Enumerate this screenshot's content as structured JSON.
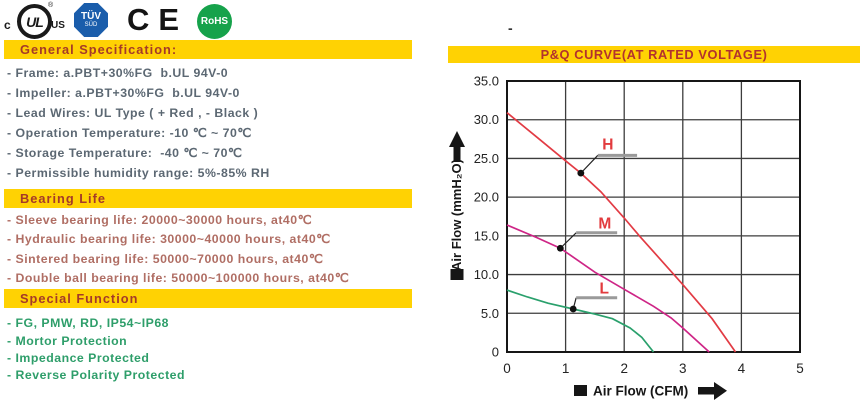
{
  "certifications": {
    "ul": {
      "prefix": "c",
      "letters": "UL",
      "suffix": "US",
      "registered": "®"
    },
    "tuv": {
      "top": "TÜV",
      "bottom": "SÜD"
    },
    "ce": "CE",
    "rohs": "RoHS"
  },
  "page_dash": "-",
  "sections": [
    {
      "title": "General Specification:",
      "items": [
        "- Frame: a.PBT+30%FG  b.UL 94V-0",
        "- Impeller: a.PBT+30%FG  b.UL 94V-0",
        "- Lead Wires: UL Type ( + Red , - Black )",
        "- Operation Temperature: -10 ℃ ~ 70℃",
        "- Storage Temperature:  -40 ℃ ~ 70℃",
        "- Permissible humidity range: 5%-85% RH"
      ]
    },
    {
      "title": "Bearing Life",
      "items": [
        "- Sleeve bearing life: 20000~30000 hours, at40℃",
        "- Hydraulic bearing life: 30000~40000 hours, at40℃",
        "- Sintered bearing life: 50000~70000 hours, at40℃",
        "- Double ball bearing life: 50000~100000 hours, at40℃"
      ]
    },
    {
      "title": "Special Function",
      "items": [
        "- FG, PMW, RD, IP54~IP68",
        "- Mortor Protection",
        "- Impedance Protected",
        "- Reverse Polarity Protected"
      ]
    }
  ],
  "colors": {
    "section_bar": "#FFD203",
    "section_title_text": "#A53A28",
    "general_text": "#5C6873",
    "bearing_text": "#B06E64",
    "special_text": "#2E9E6A",
    "chart_title_text": "#B2322E",
    "curve_label": "#E23B3E"
  },
  "chart_data": {
    "type": "line",
    "title": "P&Q CURVE(AT RATED VOLTAGE)",
    "xlabel": "Air Flow (CFM)",
    "ylabel": "Air Flow (mmH₂O)",
    "xlim": [
      0,
      5
    ],
    "ylim": [
      0,
      35
    ],
    "x_ticks": [
      "0",
      "1",
      "2",
      "3",
      "4",
      "5"
    ],
    "y_ticks": [
      "35.0",
      "30.0",
      "25.0",
      "20.0",
      "15.0",
      "10.0",
      "5.0",
      "0"
    ],
    "grid": true,
    "legend_position": "inline-callouts",
    "series_label_color": "#E23B3E",
    "series": [
      {
        "name": "H",
        "color": "#E23B44",
        "points": [
          [
            0,
            30.9
          ],
          [
            0.5,
            27.8
          ],
          [
            1,
            24.7
          ],
          [
            1.26,
            23.1
          ],
          [
            1.6,
            20.7
          ],
          [
            2,
            17.3
          ],
          [
            2.26,
            15
          ],
          [
            2.6,
            12.1
          ],
          [
            3,
            8.7
          ],
          [
            3.5,
            4.3
          ],
          [
            3.9,
            0
          ]
        ],
        "callout": {
          "dot": [
            1.26,
            23.1
          ],
          "label_pos": [
            1.72,
            26.8
          ],
          "underline": {
            "x1": 1.55,
            "x2": 2.22,
            "y": 25.4
          }
        }
      },
      {
        "name": "M",
        "color": "#CE2586",
        "points": [
          [
            0,
            16.4
          ],
          [
            0.5,
            14.8
          ],
          [
            0.91,
            13.4
          ],
          [
            1.5,
            10.3
          ],
          [
            2,
            8.1
          ],
          [
            2.5,
            5.9
          ],
          [
            2.8,
            4.4
          ],
          [
            3,
            3.1
          ],
          [
            3.45,
            0
          ]
        ],
        "callout": {
          "dot": [
            0.91,
            13.4
          ],
          "label_pos": [
            1.67,
            16.6
          ],
          "underline": {
            "x1": 1.18,
            "x2": 1.88,
            "y": 15.4
          }
        }
      },
      {
        "name": "L",
        "color": "#2AA06C",
        "points": [
          [
            0,
            8
          ],
          [
            0.35,
            7.1
          ],
          [
            0.7,
            6.3
          ],
          [
            1.13,
            5.55
          ],
          [
            1.5,
            4.9
          ],
          [
            1.8,
            4.3
          ],
          [
            2.1,
            3.1
          ],
          [
            2.3,
            1.9
          ],
          [
            2.5,
            0
          ]
        ],
        "callout": {
          "dot": [
            1.13,
            5.55
          ],
          "label_pos": [
            1.66,
            8.2
          ],
          "underline": {
            "x1": 1.18,
            "x2": 1.88,
            "y": 7.0
          }
        }
      }
    ]
  }
}
